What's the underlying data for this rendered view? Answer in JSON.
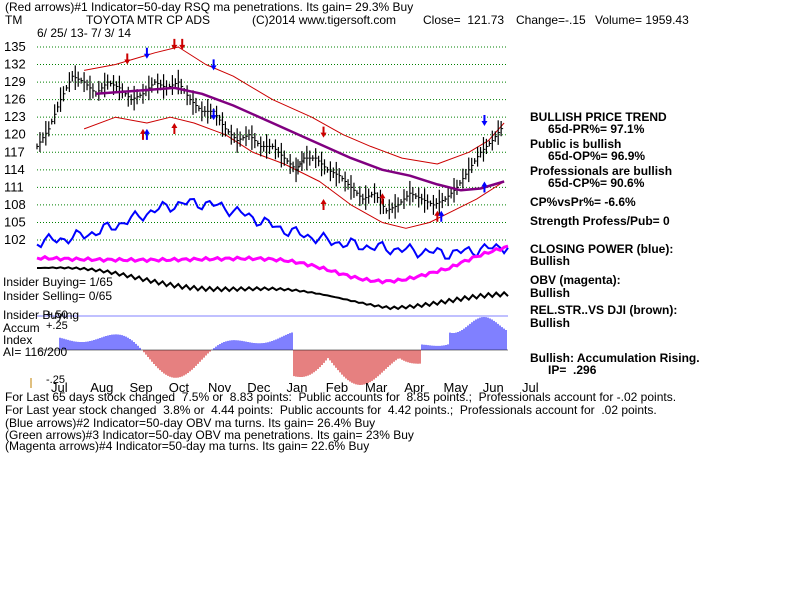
{
  "header": {
    "line1": "(Red arrows)#1 Indicator=50-day RSQ ma penetrations. Its gain= 29.3% Buy",
    "ticker": "TM",
    "company": "TOYOTA MTR CP ADS",
    "copyright": "(C)2014 www.tigersoft.com",
    "close": "Close=  121.73",
    "change": "Change=-.15",
    "volume": "Volume= 1959.43",
    "daterange": "6/ 25/ 13- 7/ 3/ 14"
  },
  "right_panel": {
    "trend": "BULLISH PRICE TREND",
    "pr": "65d-PR%= 97.1%",
    "public": "Public is bullish",
    "op": "65d-OP%= 96.9%",
    "professionals": "Professionals are bullish",
    "cp": "65d-CP%= 90.6%",
    "cpvspr": "CP%vsPr%= -6.6%",
    "strength": "Strength Profess/Pub= 0",
    "closing_power": "CLOSING POWER (blue):",
    "closing_power_val": "Bullish",
    "obv": "OBV (magenta):",
    "obv_val": "Bullish",
    "relstr": "REL.STR..VS DJI (brown):",
    "relstr_val": "Bullish",
    "accum": "Bullish: Accumulation Rising.",
    "ip": "IP=  .296"
  },
  "left_panel": {
    "insider_buying": "Insider Buying= 1/65",
    "insider_selling": "Insider Selling= 0/65",
    "insider_buying2": "Insider Buying",
    "accum": "Accum",
    "index": "Index",
    "ai": "AI= 116/200",
    "plus25": "+.25",
    "plus50": "+.50",
    "minus25": "-.25"
  },
  "footer": {
    "line1": "For Last 65 days stock changed  7.5% or  8.83 points:  Public accounts for  8.85 points.;  Professionals account for -.02 points.",
    "line2": "For Last year stock changed  3.8% or  4.44 points:  Public accounts for  4.42 points.;  Professionals account for  .02 points.",
    "line3": "(Blue arrows)#2 Indicator=50-day OBV ma turns. Its gain= 26.4% Buy",
    "line4": "(Green arrows)#3 Indicator=50-day OBV ma penetrations. Its gain= 23% Buy",
    "line5": "(Magenta arrows)#4 Indicator=50-day ma turns. Its gain= 22.6% Buy"
  },
  "colors": {
    "price": "#000000",
    "bands": "#cc0000",
    "ma50": "#800080",
    "closing_power": "#0000ff",
    "obv": "#ff00ff",
    "relstr": "#000000",
    "accum_pos": "#0000ff",
    "accum_neg": "#cc0000",
    "grid": "#008000"
  },
  "chart_data": {
    "type": "line",
    "title": "TOYOTA MTR CP ADS",
    "y_ticks": [
      135,
      132,
      129,
      126,
      123,
      120,
      117,
      114,
      111,
      108,
      105,
      102
    ],
    "ylim": [
      102,
      135
    ],
    "x_ticks": [
      "Jul",
      "Aug",
      "Sep",
      "Oct",
      "Nov",
      "Dec",
      "Jan",
      "Feb",
      "Mar",
      "Apr",
      "May",
      "Jun",
      "Jul"
    ],
    "grid": true,
    "series": [
      {
        "kind": "price",
        "values": [
          [
            0,
            118
          ],
          [
            0.3,
            121
          ],
          [
            0.6,
            126
          ],
          [
            0.9,
            130
          ],
          [
            1.2,
            129
          ],
          [
            1.5,
            127
          ],
          [
            1.8,
            129
          ],
          [
            2.1,
            128
          ],
          [
            2.4,
            126
          ],
          [
            2.7,
            127
          ],
          [
            3.0,
            129
          ],
          [
            3.3,
            128
          ],
          [
            3.6,
            129
          ],
          [
            3.9,
            126
          ],
          [
            4.2,
            124
          ],
          [
            4.5,
            124
          ],
          [
            4.8,
            121
          ],
          [
            5.1,
            119
          ],
          [
            5.4,
            120
          ],
          [
            5.7,
            118
          ],
          [
            6.0,
            118
          ],
          [
            6.3,
            116
          ],
          [
            6.6,
            114
          ],
          [
            6.8,
            116
          ],
          [
            7.1,
            116
          ],
          [
            7.4,
            114
          ],
          [
            7.7,
            113
          ],
          [
            8.0,
            111
          ],
          [
            8.3,
            109
          ],
          [
            8.6,
            110
          ],
          [
            8.9,
            107
          ],
          [
            9.2,
            108
          ],
          [
            9.5,
            110
          ],
          [
            9.8,
            109
          ],
          [
            10.1,
            108
          ],
          [
            10.4,
            109
          ],
          [
            10.7,
            111
          ],
          [
            11.0,
            114
          ],
          [
            11.3,
            117
          ],
          [
            11.6,
            119
          ],
          [
            11.9,
            121.73
          ]
        ]
      },
      {
        "kind": "ma50",
        "values": [
          [
            1.5,
            127
          ],
          [
            2.5,
            127.5
          ],
          [
            3.5,
            128
          ],
          [
            4.2,
            127
          ],
          [
            5.0,
            125
          ],
          [
            6.0,
            122
          ],
          [
            7.0,
            119
          ],
          [
            8.0,
            116
          ],
          [
            8.8,
            114
          ],
          [
            9.5,
            113
          ],
          [
            10.2,
            111.5
          ],
          [
            10.8,
            110.5
          ],
          [
            11.3,
            110.8
          ],
          [
            11.9,
            112
          ]
        ]
      },
      {
        "kind": "band_upper",
        "values": [
          [
            1.2,
            131
          ],
          [
            2.0,
            132
          ],
          [
            3.0,
            134
          ],
          [
            3.6,
            135
          ],
          [
            4.3,
            132
          ],
          [
            5.0,
            130
          ],
          [
            6.0,
            126
          ],
          [
            7.0,
            123
          ],
          [
            7.8,
            120
          ],
          [
            8.5,
            118
          ],
          [
            9.3,
            116
          ],
          [
            10.2,
            115
          ],
          [
            11.0,
            117
          ],
          [
            11.5,
            119
          ],
          [
            11.9,
            122
          ]
        ]
      },
      {
        "kind": "band_lower",
        "values": [
          [
            1.2,
            121
          ],
          [
            2.0,
            123
          ],
          [
            2.8,
            122
          ],
          [
            3.4,
            123
          ],
          [
            4.0,
            122
          ],
          [
            4.8,
            120
          ],
          [
            5.5,
            117
          ],
          [
            6.3,
            115
          ],
          [
            7.2,
            112
          ],
          [
            8.0,
            108
          ],
          [
            8.8,
            105
          ],
          [
            9.4,
            104
          ],
          [
            10.0,
            105
          ],
          [
            10.6,
            107
          ],
          [
            11.2,
            109
          ],
          [
            11.9,
            112
          ]
        ]
      }
    ]
  }
}
